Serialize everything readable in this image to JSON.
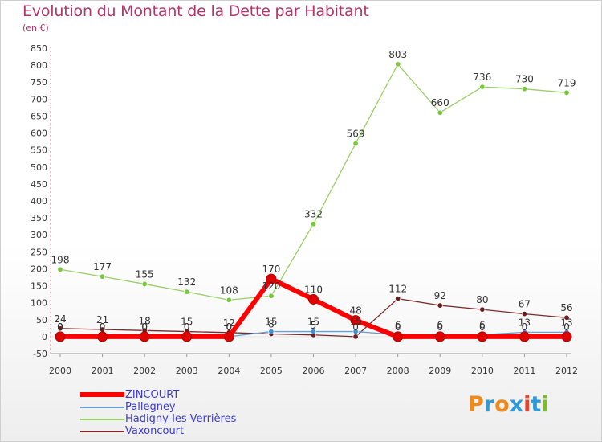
{
  "header": {
    "title": "Evolution du Montant de la Dette par Habitant",
    "subtitle": "(en €)"
  },
  "logo": {
    "text": "Proxiti",
    "colors": [
      "#f08a1c",
      "#2f9ad8",
      "#f08a1c",
      "#2f9ad8",
      "#e8442c",
      "#2f9ad8",
      "#82b82c"
    ]
  },
  "chart_data": {
    "type": "line",
    "title": "Evolution du Montant de la Dette par Habitant",
    "subtitle": "(en €)",
    "xlabel": "",
    "ylabel": "",
    "x": [
      "2000",
      "2001",
      "2002",
      "2003",
      "2004",
      "2005",
      "2006",
      "2007",
      "2008",
      "2009",
      "2010",
      "2011",
      "2012"
    ],
    "ylim": [
      -50,
      850
    ],
    "yticks": [
      -50,
      0,
      50,
      100,
      150,
      200,
      250,
      300,
      350,
      400,
      450,
      500,
      550,
      600,
      650,
      700,
      750,
      800,
      850
    ],
    "grid": false,
    "legend_position": "bottom-left",
    "series": [
      {
        "name": "Hadigny-les-Verrières",
        "color": "#99d066",
        "marker": "#78c83c",
        "width": 1.3,
        "values": [
          198,
          177,
          155,
          132,
          108,
          120,
          332,
          569,
          803,
          660,
          736,
          730,
          719
        ],
        "labels": [
          "198",
          "177",
          "155",
          "132",
          "108",
          "120",
          "332",
          "569",
          "803",
          "660",
          "736",
          "730",
          "719"
        ]
      },
      {
        "name": "Vaxoncourt",
        "color": "#7a2a2a",
        "marker": "#6a1d1d",
        "width": 1.3,
        "values": [
          24,
          21,
          18,
          15,
          12,
          8,
          5,
          0,
          112,
          92,
          80,
          67,
          56
        ],
        "labels": [
          "24",
          "21",
          "18",
          "15",
          "12",
          "8",
          "5",
          "0",
          "112",
          "92",
          "80",
          "67",
          "56"
        ]
      },
      {
        "name": "Pallegney",
        "color": "#6a9fd6",
        "marker": "#3f8fd8",
        "width": 1.3,
        "values": [
          0,
          0,
          0,
          0,
          0,
          15,
          15,
          15,
          6,
          6,
          6,
          13,
          13
        ],
        "labels": [
          "0",
          "0",
          "0",
          "0",
          "0",
          "15",
          "15",
          "15",
          "6",
          "6",
          "6",
          "13",
          "13"
        ]
      },
      {
        "name": "ZINCOURT",
        "color": "#ff0000",
        "marker": "#e00000",
        "width": 6,
        "values": [
          0,
          0,
          0,
          0,
          0,
          170,
          110,
          48,
          0,
          0,
          0,
          0,
          0
        ],
        "labels": [
          "0",
          "0",
          "0",
          "0",
          "0",
          "170",
          "110",
          "48",
          "0",
          "0",
          "0",
          "0",
          "0"
        ]
      }
    ]
  },
  "legend": {
    "items": [
      {
        "label": "ZINCOURT",
        "color": "#ff0000",
        "thick": true
      },
      {
        "label": "Pallegney",
        "color": "#6a9fd6",
        "thick": false
      },
      {
        "label": "Hadigny-les-Verrières",
        "color": "#99d066",
        "thick": false
      },
      {
        "label": "Vaxoncourt",
        "color": "#7a2a2a",
        "thick": false
      }
    ]
  }
}
